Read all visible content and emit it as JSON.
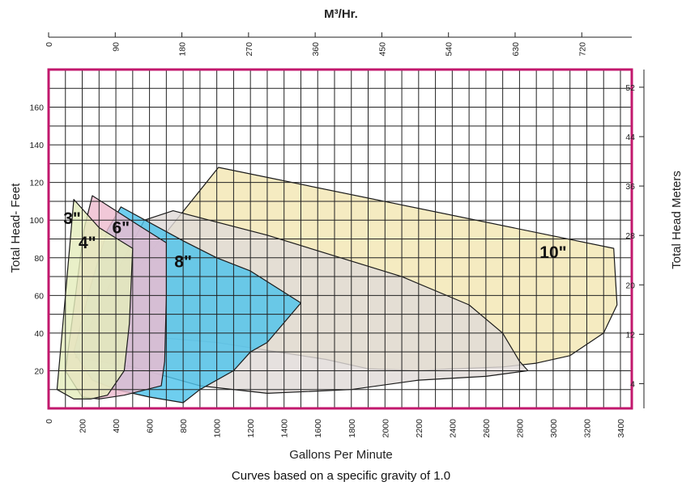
{
  "chart_data": {
    "type": "area",
    "top_axis": {
      "label": "M³/Hr.",
      "ticks": [
        "0",
        "90",
        "180",
        "270",
        "360",
        "450",
        "540",
        "630",
        "720"
      ]
    },
    "xlabel": "Gallons Per Minute",
    "x_ticks": [
      "0",
      "200",
      "400",
      "600",
      "800",
      "1000",
      "1200",
      "1400",
      "1600",
      "1800",
      "2000",
      "2200",
      "2400",
      "2600",
      "2800",
      "3000",
      "3200",
      "3400"
    ],
    "xlim": [
      0,
      3500
    ],
    "ylabel_left": "Total Head- Feet",
    "y_left_ticks": [
      "20",
      "40",
      "60",
      "80",
      "100",
      "120",
      "140",
      "160"
    ],
    "ylim": [
      0,
      180
    ],
    "ylabel_right": "Total Head Meters",
    "y_right_ticks": [
      "4",
      "12",
      "20",
      "28",
      "36",
      "44",
      "52"
    ],
    "grid": true,
    "caption": "Curves based on a specific gravity of 1.0",
    "series": [
      {
        "name": "10\"",
        "color": "#f3e7b3",
        "label_at": [
          3000,
          80
        ],
        "outline": [
          [
            220,
            40
          ],
          [
            1010,
            128
          ],
          [
            3360,
            85
          ],
          [
            3380,
            55
          ],
          [
            3300,
            40
          ],
          [
            3100,
            28
          ],
          [
            2900,
            24
          ],
          [
            2700,
            22
          ],
          [
            2400,
            21
          ],
          [
            2200,
            20
          ],
          [
            1900,
            21
          ],
          [
            1650,
            26
          ],
          [
            1000,
            35
          ],
          [
            600,
            38
          ],
          [
            220,
            40
          ]
        ]
      },
      {
        "name": "8\"",
        "color": "#e0dbd8",
        "label_at": [
          800,
          75
        ],
        "outline": [
          [
            160,
            27
          ],
          [
            330,
            60
          ],
          [
            570,
            100
          ],
          [
            740,
            105
          ],
          [
            1300,
            92
          ],
          [
            2100,
            70
          ],
          [
            2500,
            55
          ],
          [
            2700,
            40
          ],
          [
            2800,
            25
          ],
          [
            2850,
            20
          ],
          [
            2600,
            17
          ],
          [
            2200,
            15
          ],
          [
            1800,
            10
          ],
          [
            1300,
            8
          ],
          [
            900,
            12
          ],
          [
            500,
            22
          ],
          [
            160,
            27
          ]
        ]
      },
      {
        "name": "6\"",
        "color": "#4ec3ec",
        "label_at": [
          430,
          93
        ],
        "outline": [
          [
            150,
            30
          ],
          [
            250,
            65
          ],
          [
            350,
            95
          ],
          [
            430,
            107
          ],
          [
            800,
            89
          ],
          [
            1000,
            80
          ],
          [
            1200,
            73
          ],
          [
            1500,
            56
          ],
          [
            1300,
            35
          ],
          [
            1200,
            30
          ],
          [
            1100,
            20
          ],
          [
            900,
            10
          ],
          [
            800,
            3
          ],
          [
            600,
            6
          ],
          [
            400,
            10
          ],
          [
            260,
            15
          ],
          [
            150,
            30
          ]
        ]
      },
      {
        "name": "4\"",
        "color": "#eebcd0",
        "label_at": [
          230,
          85
        ],
        "outline": [
          [
            100,
            20
          ],
          [
            160,
            60
          ],
          [
            210,
            95
          ],
          [
            260,
            113
          ],
          [
            400,
            105
          ],
          [
            540,
            97
          ],
          [
            700,
            88
          ],
          [
            700,
            60
          ],
          [
            690,
            25
          ],
          [
            670,
            12
          ],
          [
            450,
            7
          ],
          [
            300,
            5
          ],
          [
            200,
            6
          ],
          [
            100,
            20
          ]
        ]
      },
      {
        "name": "3\"",
        "color": "#e4edbc",
        "label_at": [
          140,
          98
        ],
        "outline": [
          [
            50,
            10
          ],
          [
            100,
            60
          ],
          [
            150,
            111
          ],
          [
            300,
            96
          ],
          [
            500,
            85
          ],
          [
            480,
            45
          ],
          [
            450,
            20
          ],
          [
            350,
            7
          ],
          [
            250,
            5
          ],
          [
            150,
            5
          ],
          [
            50,
            10
          ]
        ]
      }
    ]
  }
}
